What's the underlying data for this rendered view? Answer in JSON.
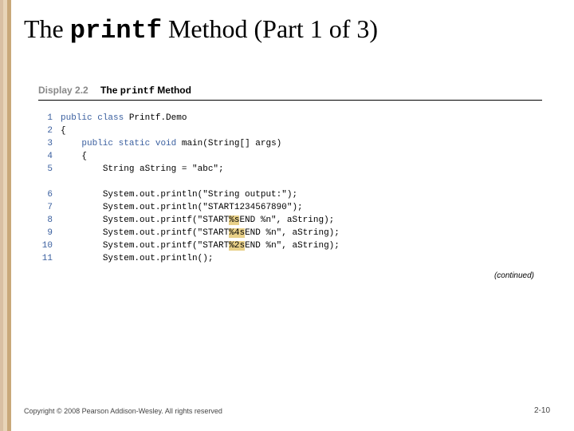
{
  "stripe_colors": [
    "#d9bfa3",
    "#e8d4b8",
    "#c9a87a"
  ],
  "title": {
    "pre": "The ",
    "code": "printf",
    "post": " Method (Part 1 of 3)"
  },
  "display": {
    "label": "Display 2.2",
    "title_pre": "The ",
    "title_code": "printf",
    "title_post": " Method"
  },
  "code": [
    {
      "n": "1",
      "indent": 0,
      "parts": [
        [
          "kw-public",
          "public"
        ],
        [
          "",
          " "
        ],
        [
          "kw-class",
          "class"
        ],
        [
          "",
          " Printf.Demo"
        ]
      ]
    },
    {
      "n": "2",
      "indent": 0,
      "parts": [
        [
          "",
          "{"
        ]
      ]
    },
    {
      "n": "3",
      "indent": 1,
      "parts": [
        [
          "kw-public",
          "public"
        ],
        [
          "",
          " "
        ],
        [
          "kw-static",
          "static"
        ],
        [
          "",
          " "
        ],
        [
          "kw-void",
          "void"
        ],
        [
          "",
          " main(String[] args)"
        ]
      ]
    },
    {
      "n": "4",
      "indent": 1,
      "parts": [
        [
          "",
          "{"
        ]
      ]
    },
    {
      "n": "5",
      "indent": 2,
      "parts": [
        [
          "",
          "String aString = \"abc\";"
        ]
      ]
    },
    {
      "gap": true
    },
    {
      "n": "6",
      "indent": 2,
      "parts": [
        [
          "",
          "System.out.println(\"String output:\");"
        ]
      ]
    },
    {
      "n": "7",
      "indent": 2,
      "parts": [
        [
          "",
          "System.out.println(\"START1234567890\");"
        ]
      ]
    },
    {
      "n": "8",
      "indent": 2,
      "parts": [
        [
          "",
          "System.out.printf(\"START"
        ],
        [
          "hl",
          "%s"
        ],
        [
          "",
          "END %n\", aString);"
        ]
      ]
    },
    {
      "n": "9",
      "indent": 2,
      "parts": [
        [
          "",
          "System.out.printf(\"START"
        ],
        [
          "hl",
          "%4s"
        ],
        [
          "",
          "END %n\", aString);"
        ]
      ]
    },
    {
      "n": "10",
      "indent": 2,
      "parts": [
        [
          "",
          "System.out.printf(\"START"
        ],
        [
          "hl",
          "%2s"
        ],
        [
          "",
          "END %n\", aString);"
        ]
      ]
    },
    {
      "n": "11",
      "indent": 2,
      "parts": [
        [
          "",
          "System.out.println();"
        ]
      ]
    }
  ],
  "continued": "(continued)",
  "copyright": "Copyright © 2008 Pearson Addison-Wesley. All rights reserved",
  "pagenum": "2-10",
  "indent_unit": "    "
}
